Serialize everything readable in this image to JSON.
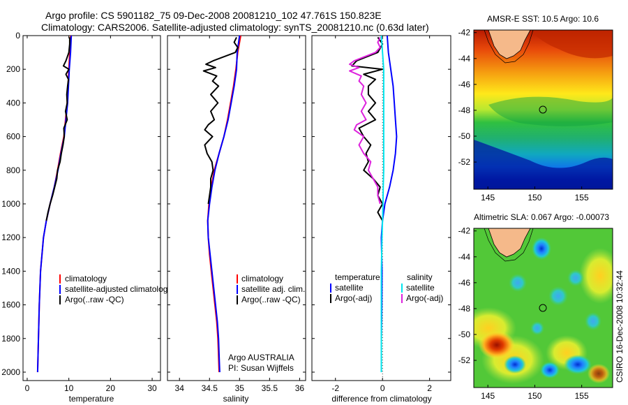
{
  "header": {
    "line1": "Argo profile: CS 5901182_75 09-Dec-2008 20081210_102 47.761S 150.823E",
    "line2": "Climatology: CARS2006. Satellite-adjusted climatology: synTS_20081210.nc (0.63d later)"
  },
  "side_text": "CSIRO 16-Dec-2008 10:32:44",
  "colors": {
    "climatology": "#ff0000",
    "satellite": "#0000ff",
    "argo": "#000000",
    "diff_sat_salinity": "#00e5ee",
    "diff_argo_salinity": "#dd22dd",
    "land": "#f5b98a"
  },
  "chart_data": [
    {
      "id": "temperature",
      "type": "line",
      "xlabel": "temperature",
      "ylabel": "",
      "xlim": [
        -1,
        32
      ],
      "ylim": [
        2050,
        0
      ],
      "xticks": [
        0,
        10,
        20,
        30
      ],
      "xtick_labels": [
        "0",
        "10",
        "20",
        "30"
      ],
      "yticks": [
        0,
        200,
        400,
        600,
        800,
        1000,
        1200,
        1400,
        1600,
        1800,
        2000
      ],
      "ytick_labels": [
        "0",
        "200",
        "400",
        "600",
        "800",
        "1000",
        "1200",
        "1400",
        "1600",
        "1800",
        "2000"
      ],
      "legend": {
        "location": "lower-left",
        "entries": [
          "climatology",
          "satellite-adjusted climatology",
          "Argo(..raw -QC)"
        ]
      },
      "series": [
        {
          "name": "climatology",
          "color": "#ff0000",
          "depth": [
            0,
            100,
            200,
            300,
            400,
            500,
            600,
            700,
            800,
            900,
            1000,
            1100,
            1200,
            1400,
            1600,
            1800,
            2000
          ],
          "values": [
            10.4,
            10.2,
            10.0,
            9.8,
            9.6,
            9.2,
            8.8,
            8.0,
            7.3,
            6.5,
            5.5,
            4.6,
            3.9,
            3.2,
            2.9,
            2.7,
            2.5
          ]
        },
        {
          "name": "satellite",
          "color": "#0000ff",
          "depth": [
            0,
            100,
            200,
            300,
            400,
            500,
            600,
            700,
            800,
            900,
            1000,
            1100,
            1200,
            1400,
            1600,
            1800,
            2000
          ],
          "values": [
            10.6,
            10.4,
            10.1,
            9.9,
            9.7,
            9.3,
            8.9,
            8.1,
            7.4,
            6.5,
            5.5,
            4.6,
            3.9,
            3.2,
            2.9,
            2.7,
            2.5
          ]
        },
        {
          "name": "Argo",
          "color": "#000000",
          "depth": [
            10,
            50,
            100,
            150,
            180,
            200,
            230,
            260,
            300,
            350,
            400,
            450,
            500,
            550,
            600,
            650,
            700,
            750,
            800,
            850,
            900,
            950,
            1000,
            1050,
            1100
          ],
          "values": [
            10.2,
            10.2,
            10.0,
            9.3,
            8.7,
            10.0,
            9.3,
            9.9,
            9.7,
            9.5,
            9.6,
            9.2,
            9.6,
            8.8,
            8.9,
            8.6,
            8.2,
            7.9,
            7.3,
            7.1,
            6.6,
            6.1,
            5.5,
            5.0,
            4.6
          ]
        }
      ]
    },
    {
      "id": "salinity",
      "type": "line",
      "xlabel": "salinity",
      "ylabel": "",
      "xlim": [
        33.8,
        36.1
      ],
      "ylim": [
        2050,
        0
      ],
      "xticks": [
        34,
        34.5,
        35,
        35.5,
        36
      ],
      "xtick_labels": [
        "34",
        "34.5",
        "35",
        "35.5",
        "36"
      ],
      "legend": {
        "location": "lower-left",
        "entries": [
          "climatology",
          "satellite adj. clim.",
          "Argo(..raw -QC)"
        ]
      },
      "annotation": [
        "Argo AUSTRALIA",
        "PI: Susan Wijffels"
      ],
      "series": [
        {
          "name": "climatology",
          "color": "#ff0000",
          "depth": [
            0,
            100,
            200,
            300,
            400,
            500,
            600,
            700,
            800,
            900,
            1000,
            1100,
            1200,
            1300,
            1400,
            1500,
            1600,
            1700,
            1800,
            1900,
            2000
          ],
          "values": [
            35.02,
            34.97,
            34.94,
            34.9,
            34.85,
            34.8,
            34.74,
            34.66,
            34.58,
            34.53,
            34.49,
            34.47,
            34.48,
            34.5,
            34.53,
            34.56,
            34.59,
            34.62,
            34.64,
            34.65,
            34.66
          ]
        },
        {
          "name": "satellite",
          "color": "#0000ff",
          "depth": [
            0,
            100,
            200,
            300,
            400,
            500,
            600,
            700,
            800,
            900,
            1000,
            1100,
            1200,
            1300,
            1400,
            1500,
            1600,
            1700,
            1800,
            1900,
            2000
          ],
          "values": [
            35.0,
            34.96,
            34.95,
            34.91,
            34.86,
            34.81,
            34.74,
            34.66,
            34.59,
            34.54,
            34.5,
            34.47,
            34.48,
            34.51,
            34.54,
            34.57,
            34.6,
            34.63,
            34.65,
            34.66,
            34.67
          ]
        },
        {
          "name": "Argo",
          "color": "#000000",
          "depth": [
            10,
            40,
            70,
            100,
            150,
            170,
            190,
            210,
            240,
            270,
            300,
            350,
            400,
            450,
            500,
            530,
            560,
            600,
            650,
            700,
            750,
            800,
            850,
            900,
            950,
            1000
          ],
          "values": [
            34.95,
            34.91,
            34.97,
            34.93,
            34.56,
            34.44,
            34.6,
            34.4,
            34.62,
            34.55,
            34.65,
            34.52,
            34.64,
            34.52,
            34.58,
            34.48,
            34.42,
            34.55,
            34.42,
            34.46,
            34.54,
            34.56,
            34.52,
            34.52,
            34.5,
            34.48
          ]
        }
      ]
    },
    {
      "id": "difference",
      "type": "line",
      "xlabel": "difference from climatology",
      "ylabel": "",
      "xlim": [
        -3.0,
        2.9
      ],
      "ylim": [
        2050,
        0
      ],
      "xticks": [
        -2,
        0,
        2
      ],
      "xtick_labels": [
        "-2",
        "0",
        "2"
      ],
      "legend": {
        "location": "lower-center",
        "headers": [
          "temperature",
          "salinity"
        ],
        "temperature_entries": [
          "satellite",
          "Argo(-adj)"
        ],
        "salinity_entries": [
          "satellite",
          "Argo(-adj)"
        ]
      },
      "series": [
        {
          "name": "temperature satellite",
          "color": "#0000ff",
          "depth": [
            0,
            100,
            200,
            300,
            400,
            500,
            600,
            700,
            800,
            900,
            1000,
            1100,
            1200,
            1400,
            1600,
            1800,
            2000
          ],
          "values": [
            0.2,
            0.25,
            0.35,
            0.45,
            0.5,
            0.55,
            0.6,
            0.55,
            0.45,
            0.3,
            0.1,
            0.0,
            -0.05,
            -0.02,
            -0.03,
            -0.05,
            -0.05
          ]
        },
        {
          "name": "temperature Argo",
          "color": "#000000",
          "depth": [
            10,
            50,
            100,
            150,
            180,
            200,
            230,
            260,
            300,
            350,
            400,
            450,
            500,
            550,
            600,
            650,
            700,
            750,
            800,
            850,
            900,
            950,
            1000,
            1050,
            1100
          ],
          "values": [
            -0.2,
            0.0,
            -0.2,
            -1.1,
            -1.3,
            0.0,
            -0.8,
            -0.3,
            -0.6,
            -0.6,
            -0.3,
            -0.6,
            -0.3,
            -1.0,
            -0.8,
            -0.5,
            -0.7,
            -0.6,
            -0.8,
            -0.4,
            -0.1,
            -0.2,
            0.0,
            -0.2,
            0.0
          ]
        },
        {
          "name": "salinity satellite",
          "color": "#00e5ee",
          "depth": [
            0,
            100,
            200,
            300,
            400,
            500,
            600,
            700,
            800,
            900,
            1000,
            1100,
            1200,
            1400,
            1600,
            1800,
            2000
          ],
          "values": [
            -0.05,
            0.0,
            0.05,
            0.05,
            0.05,
            0.05,
            0.05,
            0.05,
            0.05,
            0.03,
            0.02,
            0.0,
            -0.02,
            -0.05,
            -0.05,
            -0.05,
            -0.05
          ]
        },
        {
          "name": "salinity Argo",
          "color": "#dd22dd",
          "depth": [
            10,
            40,
            70,
            100,
            150,
            170,
            190,
            210,
            240,
            270,
            300,
            350,
            400,
            450,
            500,
            530,
            560,
            600,
            650,
            700,
            750,
            800,
            850,
            900,
            950,
            1000
          ],
          "values": [
            -0.1,
            -0.2,
            -0.1,
            -0.3,
            -1.2,
            -1.4,
            -1.0,
            -1.4,
            -0.9,
            -1.0,
            -0.8,
            -0.9,
            -0.7,
            -0.9,
            -0.7,
            -1.1,
            -1.2,
            -0.8,
            -1.0,
            -0.8,
            -0.5,
            -0.6,
            -0.4,
            -0.2,
            -0.2,
            -0.1
          ]
        }
      ]
    },
    {
      "id": "sst-map",
      "type": "heatmap",
      "title": "AMSR-E SST: 10.5 Argo: 10.6",
      "xlim": [
        143.5,
        158.3
      ],
      "ylim": [
        -54.1,
        -41.8
      ],
      "xticks": [
        145,
        150,
        155
      ],
      "xtick_labels": [
        "145",
        "150",
        "155"
      ],
      "yticks": [
        -42,
        -44,
        -46,
        -48,
        -50,
        -52
      ],
      "ytick_labels": [
        "-42",
        "-44",
        "-46",
        "-48",
        "-50",
        "-52"
      ],
      "marker": {
        "lon": 150.823,
        "lat": -47.761
      }
    },
    {
      "id": "sla-map",
      "type": "heatmap",
      "title": "Altimetric SLA: 0.067 Argo: -0.00073",
      "xlim": [
        143.5,
        158.3
      ],
      "ylim": [
        -54.1,
        -41.8
      ],
      "xticks": [
        145,
        150,
        155
      ],
      "xtick_labels": [
        "145",
        "150",
        "155"
      ],
      "yticks": [
        -42,
        -44,
        -46,
        -48,
        -50,
        -52
      ],
      "ytick_labels": [
        "-42",
        "-44",
        "-46",
        "-48",
        "-50",
        "-52"
      ],
      "marker": {
        "lon": 150.823,
        "lat": -47.761
      }
    }
  ]
}
